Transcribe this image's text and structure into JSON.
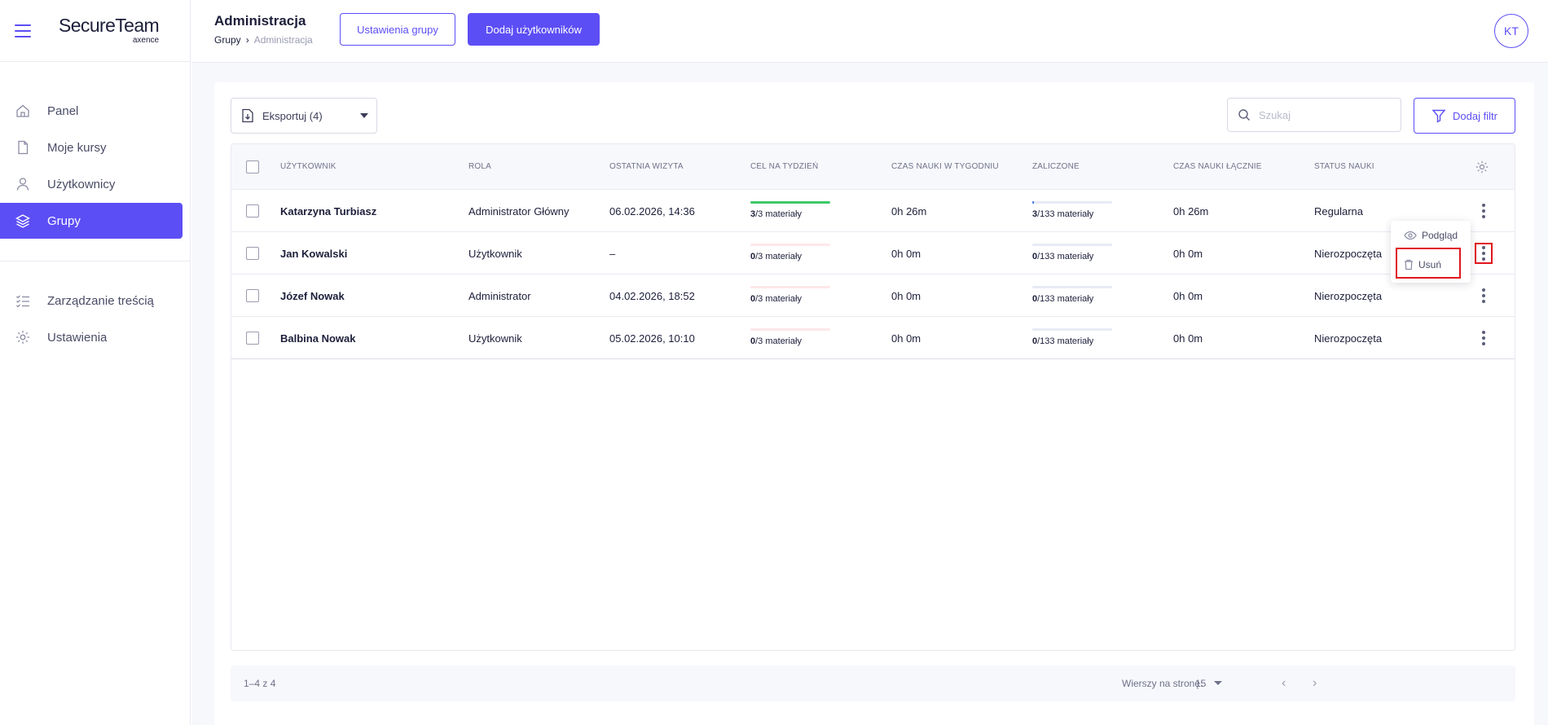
{
  "brand": {
    "name": "SecureTeam",
    "sub": "axence"
  },
  "sidebar": {
    "items": [
      {
        "label": "Panel",
        "icon": "home-icon"
      },
      {
        "label": "Moje kursy",
        "icon": "document-icon"
      },
      {
        "label": "Użytkownicy",
        "icon": "user-icon"
      },
      {
        "label": "Grupy",
        "icon": "layers-icon",
        "active": true
      }
    ],
    "items2": [
      {
        "label": "Zarządzanie treścią",
        "icon": "checklist-icon"
      },
      {
        "label": "Ustawienia",
        "icon": "gear-icon"
      }
    ]
  },
  "header": {
    "title": "Administracja",
    "breadcrumb": {
      "parent": "Grupy",
      "current": "Administracja"
    },
    "group_settings": "Ustawienia grupy",
    "add_users": "Dodaj użytkowników",
    "avatar": "KT"
  },
  "toolbar": {
    "export_label": "Eksportuj (4)",
    "search_placeholder": "Szukaj",
    "filter_label": "Dodaj filtr"
  },
  "table": {
    "columns": [
      "UŻYTKOWNIK",
      "ROLA",
      "OSTATNIA WIZYTA",
      "CEL NA TYDZIEŃ",
      "CZAS NAUKI W TYGODNIU",
      "ZALICZONE",
      "CZAS NAUKI ŁĄCZNIE",
      "STATUS NAUKI"
    ],
    "rows": [
      {
        "name": "Katarzyna Turbiasz",
        "role": "Administrator Główny",
        "last_visit": "06.02.2026, 14:36",
        "goal_done": "3",
        "goal_total": "/3 materiały",
        "goal_fraction": 1.0,
        "week_time": "0h 26m",
        "passed_done": "3",
        "passed_total": "/133 materiały",
        "passed_fraction": 0.0226,
        "total_time": "0h 26m",
        "status": "Regularna"
      },
      {
        "name": "Jan Kowalski",
        "role": "Użytkownik",
        "last_visit": "–",
        "goal_done": "0",
        "goal_total": "/3 materiały",
        "goal_fraction": 0,
        "week_time": "0h 0m",
        "passed_done": "0",
        "passed_total": "/133 materiały",
        "passed_fraction": 0,
        "total_time": "0h 0m",
        "status": "Nierozpoczęta"
      },
      {
        "name": "Józef Nowak",
        "role": "Administrator",
        "last_visit": "04.02.2026, 18:52",
        "goal_done": "0",
        "goal_total": "/3 materiały",
        "goal_fraction": 0,
        "week_time": "0h 0m",
        "passed_done": "0",
        "passed_total": "/133 materiały",
        "passed_fraction": 0,
        "total_time": "0h 0m",
        "status": "Nierozpoczęta"
      },
      {
        "name": "Balbina Nowak",
        "role": "Użytkownik",
        "last_visit": "05.02.2026, 10:10",
        "goal_done": "0",
        "goal_total": "/3 materiały",
        "goal_fraction": 0,
        "week_time": "0h 0m",
        "passed_done": "0",
        "passed_total": "/133 materiały",
        "passed_fraction": 0,
        "total_time": "0h 0m",
        "status": "Nierozpoczęta"
      }
    ]
  },
  "row_menu": {
    "preview": "Podgląd",
    "delete": "Usuń"
  },
  "footer": {
    "count": "1–4 z 4",
    "rows_per_page_label": "Wierszy na stronę:",
    "rows_per_page": "15"
  },
  "colors": {
    "accent": "#5c4ef5",
    "success": "#3ec96a",
    "highlight": "#e0161e"
  }
}
